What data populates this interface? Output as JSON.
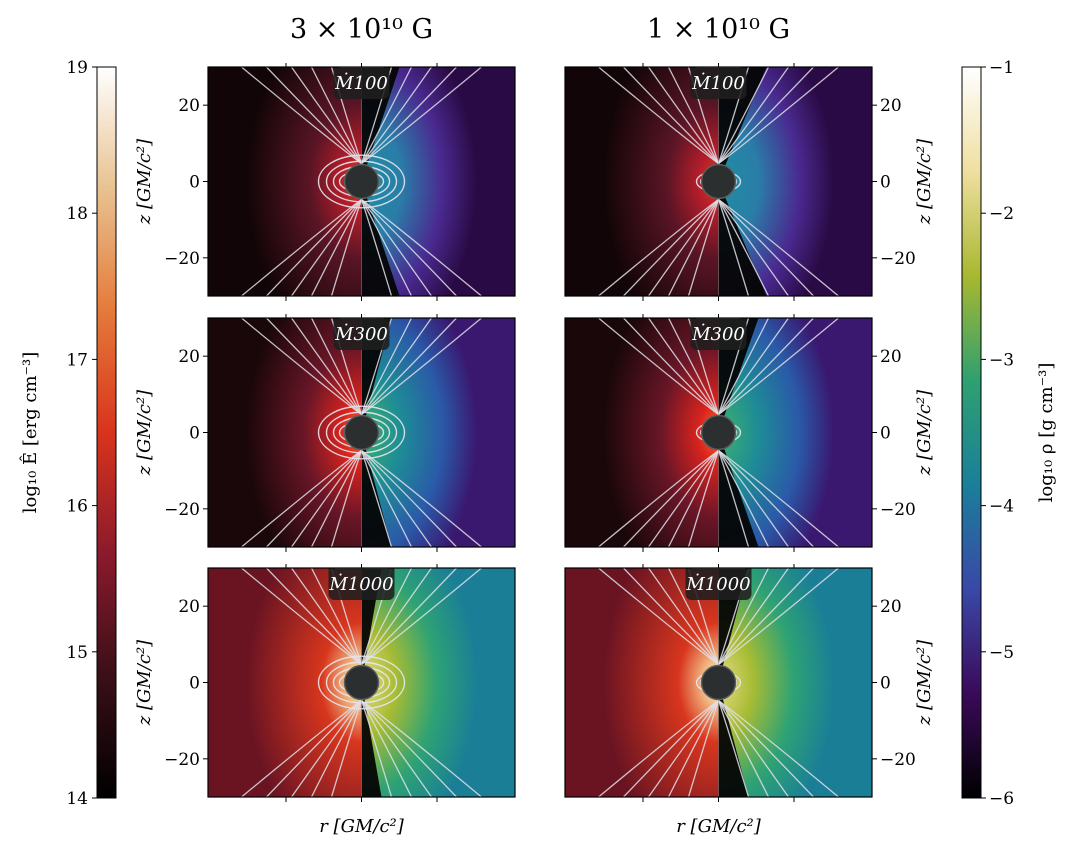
{
  "chart_data": {
    "type": "heatmap",
    "columns": [
      {
        "title": "3 × 10¹⁰ G",
        "strength": 3
      },
      {
        "title": "1 × 10¹⁰ G",
        "strength": 1
      }
    ],
    "rows": [
      {
        "label": "Ṁ100",
        "mdot": 100
      },
      {
        "label": "Ṁ300",
        "mdot": 300
      },
      {
        "label": "Ṁ1000",
        "mdot": 1000
      }
    ],
    "xlabel": "r [GM/c²]",
    "ylabel": "z [GM/c²]",
    "ylim": [
      -30,
      30
    ],
    "y_ticks": [
      -20,
      0,
      20
    ],
    "left_colorbar": {
      "label": "log₁₀ Ê [erg cm⁻³]",
      "range": [
        14,
        19
      ],
      "ticks": [
        14,
        15,
        16,
        17,
        18,
        19
      ],
      "colormap": "gist_heat-like",
      "colors": [
        "#000000",
        "#3a0f18",
        "#8a1a2c",
        "#d8341c",
        "#e57a3a",
        "#e8c290",
        "#ffffff"
      ]
    },
    "right_colorbar": {
      "label": "log₁₀ ρ [g cm⁻³]",
      "range": [
        -6,
        -1
      ],
      "ticks": [
        -6,
        -5,
        -4,
        -3,
        -2,
        -1
      ],
      "colormap": "gist_earth-like",
      "colors": [
        "#000000",
        "#3a0a5a",
        "#3a48a8",
        "#1a7f9a",
        "#2fa070",
        "#a8b830",
        "#efdfa0",
        "#ffffff"
      ]
    }
  }
}
